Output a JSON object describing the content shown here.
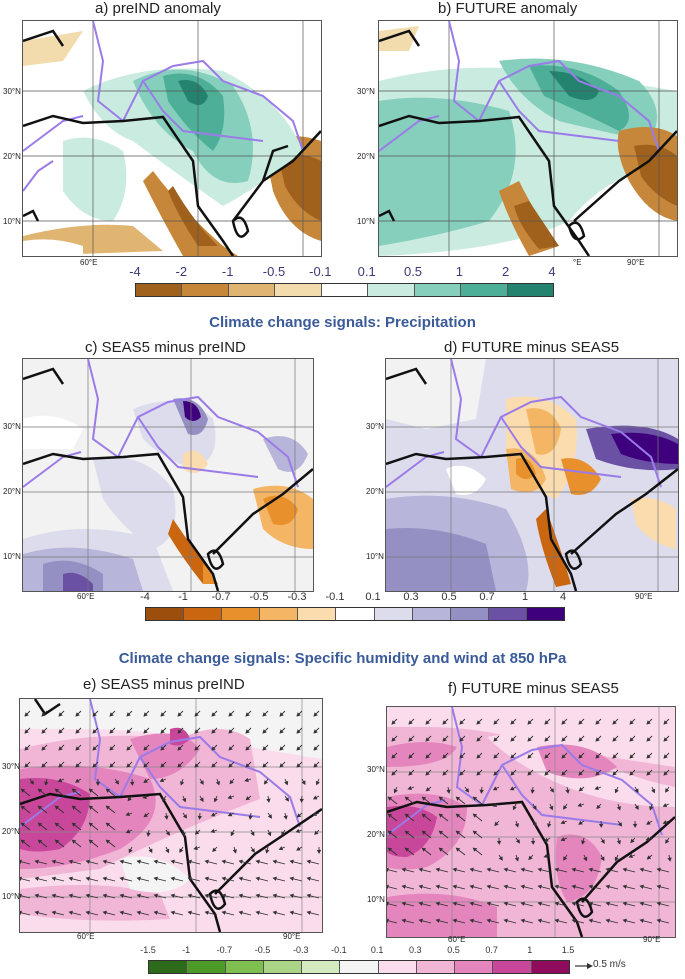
{
  "panels": {
    "a": {
      "title": "a) preIND anomaly",
      "lat_labels": [
        "30°N",
        "20°N",
        "10°N"
      ],
      "lon_labels": [
        "60°E"
      ]
    },
    "b": {
      "title": "b) FUTURE anomaly",
      "lat_labels": [
        "30°N",
        "20°N",
        "10°N"
      ],
      "lon_labels": [
        "°E",
        "90°E"
      ]
    },
    "c": {
      "title": "c) SEAS5 minus preIND",
      "lat_labels": [
        "30°N",
        "20°N",
        "10°N"
      ],
      "lon_labels": [
        "60°E"
      ]
    },
    "d": {
      "title": "d) FUTURE minus SEAS5",
      "lat_labels": [
        "30°N",
        "20°N",
        "10°N"
      ],
      "lon_labels": [
        "90°E"
      ]
    },
    "e": {
      "title": "e) SEAS5 minus preIND",
      "lat_labels": [
        "30°N",
        "20°N",
        "10°N"
      ],
      "lon_labels": [
        "60°E",
        "90°E"
      ]
    },
    "f": {
      "title": "f) FUTURE minus SEAS5",
      "lat_labels": [
        "30°N",
        "20°N",
        "10°N"
      ],
      "lon_labels": [
        "60°E",
        "90°E"
      ]
    }
  },
  "section_titles": {
    "precip": "Climate change signals: Precipitation",
    "humidity": "Climate change signals: Specific humidity and wind at 850 hPa"
  },
  "colorbars": {
    "anomaly": {
      "labels": [
        "-4",
        "-2",
        "-1",
        "-0.5",
        "-0.1",
        "0.1",
        "0.5",
        "1",
        "2",
        "4"
      ],
      "colors": [
        "#a0611c",
        "#c7873a",
        "#e0b572",
        "#f2dcae",
        "#ffffff",
        "#c9ebe0",
        "#85cfbc",
        "#4eaf98",
        "#24836f"
      ]
    },
    "precip_signal": {
      "labels": [
        "-4",
        "-1",
        "-0.7",
        "-0.5",
        "-0.3",
        "-0.1",
        "0.1",
        "0.3",
        "0.5",
        "0.7",
        "1",
        "4"
      ],
      "colors": [
        "#9c4f0c",
        "#c9660f",
        "#e8902c",
        "#f4b665",
        "#fbdcae",
        "#ffffff",
        "#dcdcec",
        "#b7b5d9",
        "#9590c4",
        "#6a51a3",
        "#3f007d"
      ]
    },
    "humidity_signal": {
      "labels": [
        "-1.5",
        "-1",
        "-0.7",
        "-0.5",
        "-0.3",
        "-0.1",
        "0.1",
        "0.3",
        "0.5",
        "0.7",
        "1",
        "1.5"
      ],
      "colors": [
        "#2d6a1a",
        "#4d9a28",
        "#7fbf4f",
        "#aad587",
        "#d4ebbf",
        "#f4f4f4",
        "#fbdcec",
        "#f1b5d6",
        "#e485bd",
        "#c9479a",
        "#8f0b5c"
      ],
      "ref_vector_label": "0.5 m/s"
    }
  }
}
